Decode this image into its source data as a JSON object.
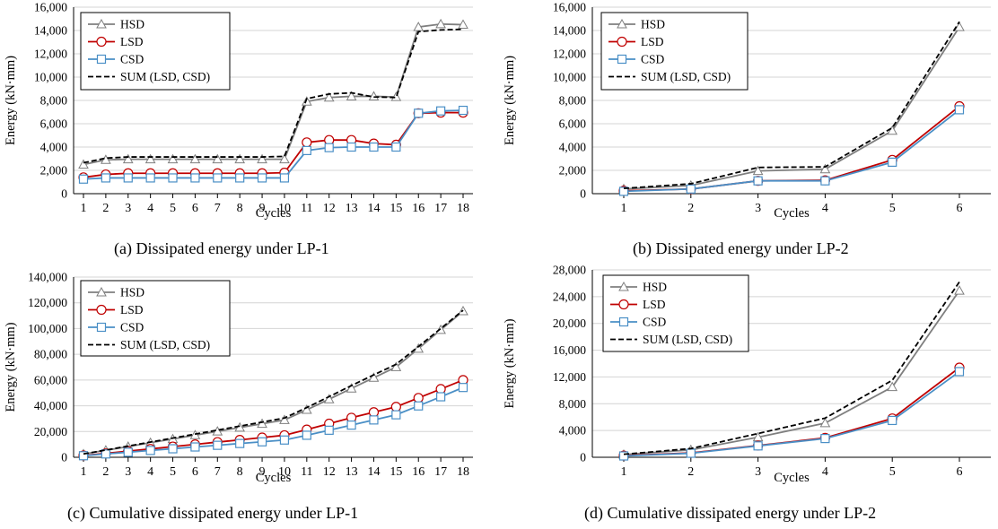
{
  "colors": {
    "HSD": "#7f7f7f",
    "LSD": "#c00000",
    "CSD": "#4a8fc6",
    "SUM": "#000000",
    "grid": "#d4d4d4",
    "axis": "#000000"
  },
  "chart_data": [
    {
      "type": "line",
      "caption": "(a) Dissipated energy under LP-1",
      "xlabel": "Cycles",
      "ylabel": "Energy (kN·mm)",
      "categories": [
        "1",
        "2",
        "3",
        "4",
        "5",
        "6",
        "7",
        "8",
        "9",
        "10",
        "11",
        "12",
        "13",
        "14",
        "15",
        "16",
        "17",
        "18"
      ],
      "ylim": [
        0,
        16000
      ],
      "yticks": [
        "0",
        "2,000",
        "4,000",
        "6,000",
        "8,000",
        "10,000",
        "12,000",
        "14,000",
        "16,000"
      ],
      "grid": true,
      "legend_position": "top-left",
      "series": [
        {
          "name": "HSD",
          "key": "HSD",
          "marker": "triangle",
          "dashed": false,
          "values": [
            2500,
            2900,
            2950,
            2950,
            2950,
            2950,
            2950,
            2950,
            2950,
            2950,
            7900,
            8250,
            8350,
            8350,
            8300,
            14300,
            14550,
            14500
          ]
        },
        {
          "name": "LSD",
          "key": "LSD",
          "marker": "circle",
          "dashed": false,
          "values": [
            1400,
            1650,
            1750,
            1750,
            1750,
            1750,
            1750,
            1750,
            1750,
            1800,
            4400,
            4600,
            4600,
            4300,
            4200,
            6900,
            6950,
            6950
          ]
        },
        {
          "name": "CSD",
          "key": "CSD",
          "marker": "square",
          "dashed": false,
          "values": [
            1250,
            1350,
            1350,
            1350,
            1350,
            1350,
            1350,
            1350,
            1350,
            1350,
            3700,
            3950,
            4000,
            4000,
            4000,
            6900,
            7100,
            7150
          ]
        },
        {
          "name": "SUM (LSD, CSD)",
          "key": "SUM",
          "marker": "none",
          "dashed": true,
          "values": [
            2650,
            3050,
            3150,
            3150,
            3150,
            3150,
            3150,
            3150,
            3150,
            3200,
            8150,
            8550,
            8650,
            8300,
            8250,
            13900,
            14050,
            14100
          ]
        }
      ]
    },
    {
      "type": "line",
      "caption": "(b) Dissipated energy under LP-2",
      "xlabel": "Cycles",
      "ylabel": "Energy (kN·mm)",
      "categories": [
        "1",
        "2",
        "3",
        "4",
        "5",
        "6"
      ],
      "ylim": [
        0,
        16000
      ],
      "yticks": [
        "0",
        "2,000",
        "4,000",
        "6,000",
        "8,000",
        "10,000",
        "12,000",
        "14,000",
        "16,000"
      ],
      "grid": true,
      "legend_position": "top-left",
      "series": [
        {
          "name": "HSD",
          "key": "HSD",
          "marker": "triangle",
          "dashed": false,
          "values": [
            400,
            700,
            1950,
            2100,
            5400,
            14300
          ]
        },
        {
          "name": "LSD",
          "key": "LSD",
          "marker": "circle",
          "dashed": false,
          "values": [
            250,
            400,
            1100,
            1150,
            2900,
            7500
          ]
        },
        {
          "name": "CSD",
          "key": "CSD",
          "marker": "square",
          "dashed": false,
          "values": [
            200,
            400,
            1100,
            1100,
            2700,
            7200
          ]
        },
        {
          "name": "SUM (LSD, CSD)",
          "key": "SUM",
          "marker": "none",
          "dashed": true,
          "values": [
            450,
            850,
            2250,
            2300,
            5650,
            14750
          ]
        }
      ]
    },
    {
      "type": "line",
      "caption": "(c) Cumulative dissipated energy under LP-1",
      "xlabel": "Cycles",
      "ylabel": "Energy (kN·mm)",
      "categories": [
        "1",
        "2",
        "3",
        "4",
        "5",
        "6",
        "7",
        "8",
        "9",
        "10",
        "11",
        "12",
        "13",
        "14",
        "15",
        "16",
        "17",
        "18"
      ],
      "ylim": [
        0,
        140000
      ],
      "yticks": [
        "0",
        "20,000",
        "40,000",
        "60,000",
        "80,000",
        "100,000",
        "120,000",
        "140,000"
      ],
      "grid": true,
      "legend_position": "top-left",
      "series": [
        {
          "name": "HSD",
          "key": "HSD",
          "marker": "triangle",
          "dashed": false,
          "values": [
            2500,
            5400,
            8300,
            11300,
            14200,
            17200,
            20100,
            23100,
            26000,
            29000,
            36900,
            45100,
            53500,
            61800,
            70100,
            84400,
            99000,
            113500
          ]
        },
        {
          "name": "LSD",
          "key": "LSD",
          "marker": "circle",
          "dashed": false,
          "values": [
            1400,
            3000,
            4800,
            6500,
            8300,
            10000,
            11800,
            13500,
            15300,
            17100,
            21500,
            26100,
            30700,
            35000,
            39200,
            46100,
            53000,
            60000
          ]
        },
        {
          "name": "CSD",
          "key": "CSD",
          "marker": "square",
          "dashed": false,
          "values": [
            1200,
            2600,
            3900,
            5300,
            6600,
            8000,
            9300,
            10700,
            12000,
            13400,
            17100,
            21000,
            25000,
            29000,
            33000,
            39900,
            47000,
            54200
          ]
        },
        {
          "name": "SUM (LSD, CSD)",
          "key": "SUM",
          "marker": "none",
          "dashed": true,
          "values": [
            2600,
            5600,
            8700,
            11800,
            14900,
            18000,
            21100,
            24200,
            27300,
            30500,
            38600,
            47100,
            55700,
            64000,
            72200,
            86000,
            100000,
            114200
          ]
        }
      ]
    },
    {
      "type": "line",
      "caption": "(d) Cumulative dissipated energy under LP-2",
      "xlabel": "Cycles",
      "ylabel": "Energy (kN·mm)",
      "categories": [
        "1",
        "2",
        "3",
        "4",
        "5",
        "6"
      ],
      "ylim": [
        0,
        28000
      ],
      "yticks": [
        "0",
        "4,000",
        "8,000",
        "12,000",
        "16,000",
        "20,000",
        "24,000",
        "28,000"
      ],
      "grid": true,
      "legend_position": "top-left",
      "series": [
        {
          "name": "HSD",
          "key": "HSD",
          "marker": "triangle",
          "dashed": false,
          "values": [
            400,
            1100,
            3000,
            5100,
            10500,
            24900
          ]
        },
        {
          "name": "LSD",
          "key": "LSD",
          "marker": "circle",
          "dashed": false,
          "values": [
            250,
            650,
            1750,
            2900,
            5800,
            13400
          ]
        },
        {
          "name": "CSD",
          "key": "CSD",
          "marker": "square",
          "dashed": false,
          "values": [
            200,
            600,
            1700,
            2800,
            5500,
            12800
          ]
        },
        {
          "name": "SUM (LSD, CSD)",
          "key": "SUM",
          "marker": "none",
          "dashed": true,
          "values": [
            450,
            1300,
            3550,
            5850,
            11500,
            26200
          ]
        }
      ]
    }
  ]
}
